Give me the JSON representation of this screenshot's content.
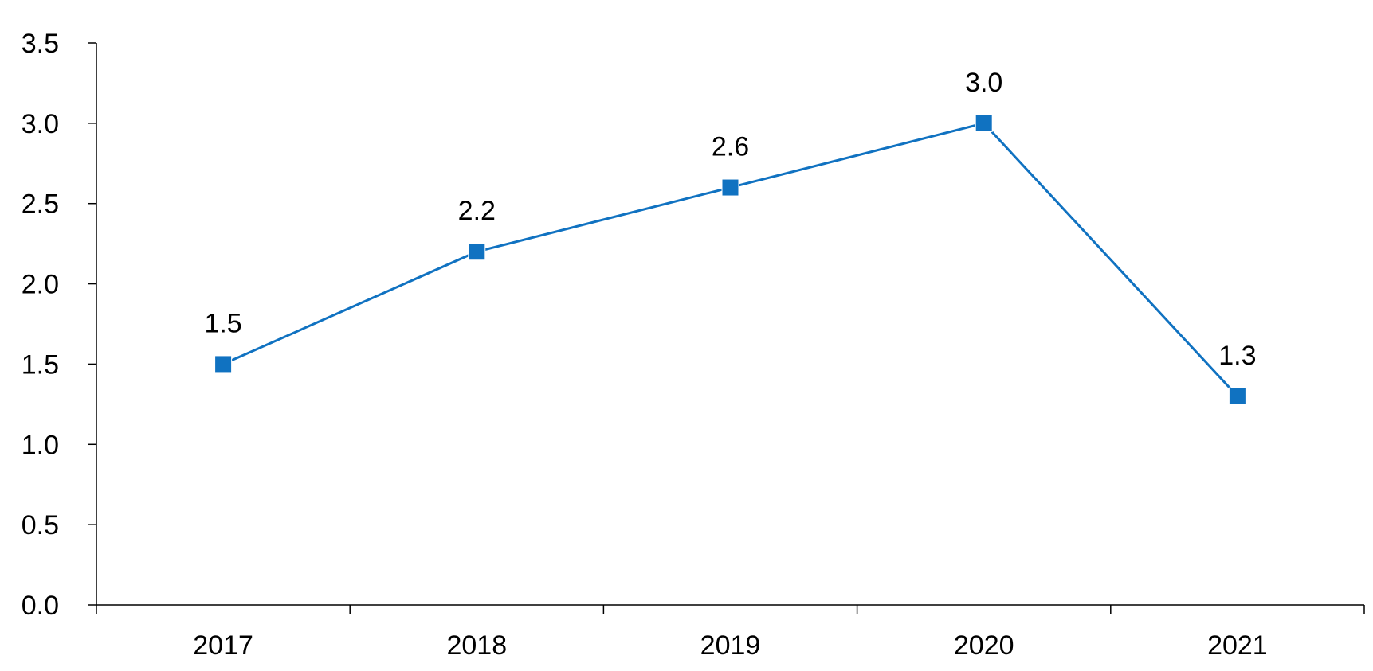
{
  "chart_data": {
    "type": "line",
    "title": "",
    "xlabel": "",
    "ylabel": "",
    "categories": [
      "2017",
      "2018",
      "2019",
      "2020",
      "2021"
    ],
    "series": [
      {
        "values": [
          1.5,
          2.2,
          2.6,
          3.0,
          1.3
        ],
        "data_labels": [
          "1.5",
          "2.2",
          "2.6",
          "3.0",
          "1.3"
        ],
        "color": "#1072C1",
        "marker": "square"
      }
    ],
    "ylim": [
      0,
      3.5
    ],
    "y_ticks": [
      0.0,
      0.5,
      1.0,
      1.5,
      2.0,
      2.5,
      3.0,
      3.5
    ],
    "y_tick_labels": [
      "0.0",
      "0.5",
      "1.0",
      "1.5",
      "2.0",
      "2.5",
      "3.0",
      "3.5"
    ],
    "grid": false,
    "legend": "none"
  }
}
